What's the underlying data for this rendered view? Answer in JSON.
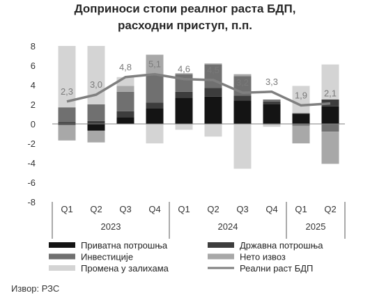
{
  "title_line1": "Доприноси стопи реалног раста БДП,",
  "title_line2": "расходни приступ, п.п.",
  "source": "Извор: РЗС",
  "chart_data": {
    "type": "bar",
    "stacked": true,
    "quarters": [
      "Q1",
      "Q2",
      "Q3",
      "Q4",
      "Q1",
      "Q2",
      "Q3",
      "Q4",
      "Q1",
      "Q2"
    ],
    "years": [
      {
        "label": "2023",
        "span": 4
      },
      {
        "label": "2024",
        "span": 4
      },
      {
        "label": "2025",
        "span": 2
      }
    ],
    "ylim": [
      -8,
      8
    ],
    "yticks": [
      8,
      6,
      4,
      2,
      0,
      -2,
      -4,
      -6,
      -8
    ],
    "grid": false,
    "legend_position": "bottom",
    "series": [
      {
        "name": "Приватна потрошња",
        "color": "#141414",
        "type": "bar",
        "values": [
          -0.1,
          -0.7,
          0.7,
          1.6,
          2.7,
          2.8,
          2.4,
          2.0,
          1.0,
          1.8
        ]
      },
      {
        "name": "Државна потрошња",
        "color": "#3d3d3d",
        "type": "bar",
        "values": [
          0.2,
          0.3,
          0.6,
          0.6,
          0.6,
          0.9,
          0.5,
          0.3,
          0.1,
          0.7
        ]
      },
      {
        "name": "Инвестиције",
        "color": "#707070",
        "type": "bar",
        "values": [
          1.5,
          1.7,
          2.0,
          2.8,
          1.8,
          2.4,
          2.0,
          0.2,
          -0.2,
          -0.8
        ]
      },
      {
        "name": "Нето извоз",
        "color": "#a8a8a8",
        "type": "bar",
        "values": [
          -1.6,
          -1.2,
          0.6,
          2.1,
          0.1,
          0.1,
          0.2,
          -0.1,
          -1.8,
          -3.3
        ]
      },
      {
        "name": "Промена у залихама",
        "color": "#d4d4d4",
        "type": "bar",
        "values": [
          6.3,
          6.0,
          0.9,
          -2.0,
          -0.6,
          -1.3,
          -4.6,
          -0.2,
          2.8,
          3.6
        ]
      },
      {
        "name": "Реални раст БДП",
        "color": "#7f7f7f",
        "type": "line",
        "values": [
          2.3,
          3.0,
          4.8,
          5.1,
          4.6,
          4.5,
          3.2,
          3.3,
          1.9,
          2.1
        ]
      }
    ]
  }
}
